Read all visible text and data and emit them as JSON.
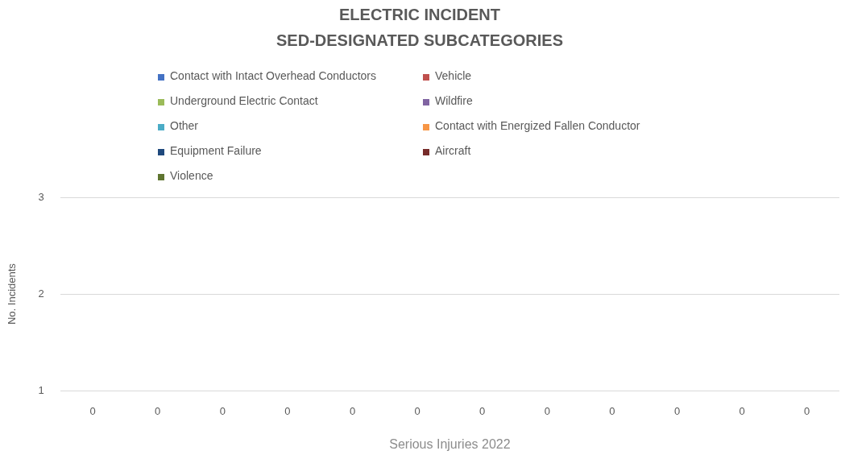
{
  "chart_data": {
    "type": "bar",
    "title": "ELECTRIC INCIDENT\nSED-DESIGNATED SUBCATEGORIES",
    "xlabel": "Serious Injuries 2022",
    "ylabel": "No. Incidents",
    "categories": [
      "0",
      "0",
      "0",
      "0",
      "0",
      "0",
      "0",
      "0",
      "0",
      "0",
      "0",
      "0"
    ],
    "series": [
      {
        "name": "Contact with Intact Overhead Conductors",
        "color": "#4472c4",
        "values": [
          null,
          null,
          null,
          null,
          null,
          null,
          null,
          null,
          null,
          null,
          null,
          null
        ]
      },
      {
        "name": "Vehicle",
        "color": "#c0504d",
        "values": [
          null,
          null,
          null,
          null,
          null,
          null,
          null,
          null,
          null,
          null,
          null,
          null
        ]
      },
      {
        "name": "Underground Electric Contact",
        "color": "#9bbb59",
        "values": [
          null,
          null,
          null,
          null,
          null,
          null,
          null,
          null,
          null,
          null,
          null,
          null
        ]
      },
      {
        "name": "Wildfire",
        "color": "#8064a2",
        "values": [
          null,
          null,
          null,
          null,
          null,
          null,
          null,
          null,
          null,
          null,
          null,
          null
        ]
      },
      {
        "name": "Other",
        "color": "#4bacc6",
        "values": [
          null,
          null,
          null,
          null,
          null,
          null,
          null,
          null,
          null,
          null,
          null,
          null
        ]
      },
      {
        "name": "Contact with Energized Fallen Conductor",
        "color": "#f79646",
        "values": [
          null,
          null,
          null,
          null,
          null,
          null,
          null,
          null,
          null,
          null,
          null,
          null
        ]
      },
      {
        "name": "Equipment Failure",
        "color": "#1f497d",
        "values": [
          null,
          null,
          null,
          null,
          null,
          null,
          null,
          null,
          null,
          null,
          null,
          null
        ]
      },
      {
        "name": "Aircraft",
        "color": "#772c2a",
        "values": [
          null,
          null,
          null,
          null,
          null,
          null,
          null,
          null,
          null,
          null,
          null,
          null
        ]
      },
      {
        "name": "Violence",
        "color": "#5f7530",
        "values": [
          null,
          null,
          null,
          null,
          null,
          null,
          null,
          null,
          null,
          null,
          null,
          null
        ]
      }
    ],
    "ylim": [
      1,
      3
    ],
    "yticks": [
      1,
      2,
      3
    ],
    "grid": "y",
    "legend": "top"
  }
}
